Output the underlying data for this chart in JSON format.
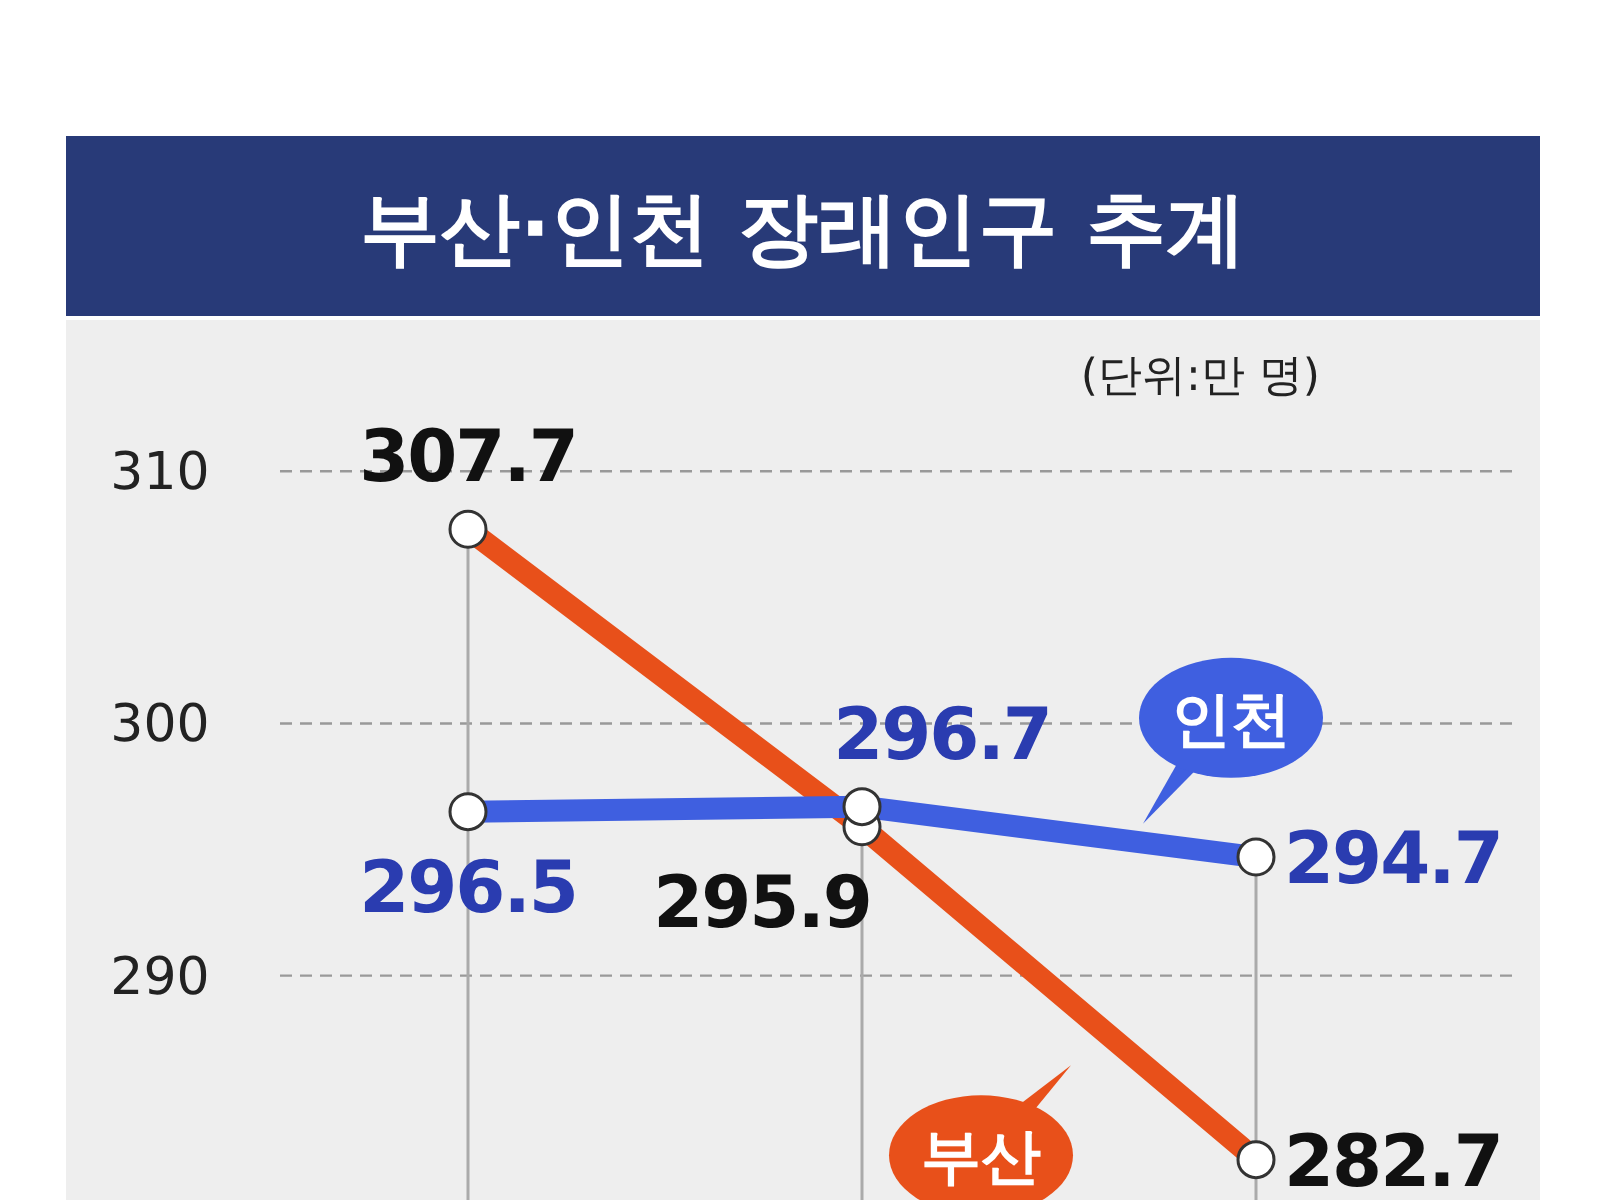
{
  "chart_data": {
    "type": "line",
    "title": "부산·인천 장래인구 추계",
    "annotations": [
      "(단위:만 명)"
    ],
    "categories": [
      null,
      null,
      null
    ],
    "series": [
      {
        "name": "부산",
        "color": "#e8501a",
        "values": [
          307.7,
          295.9,
          282.7
        ]
      },
      {
        "name": "인천",
        "color": "#3f5fe0",
        "values": [
          296.5,
          296.7,
          294.7
        ]
      }
    ],
    "ylim": [
      281.1,
      316
    ],
    "yticks": [
      290,
      300,
      310
    ],
    "grid": "y",
    "marker": "circle",
    "data_labels": true,
    "legend": false
  }
}
